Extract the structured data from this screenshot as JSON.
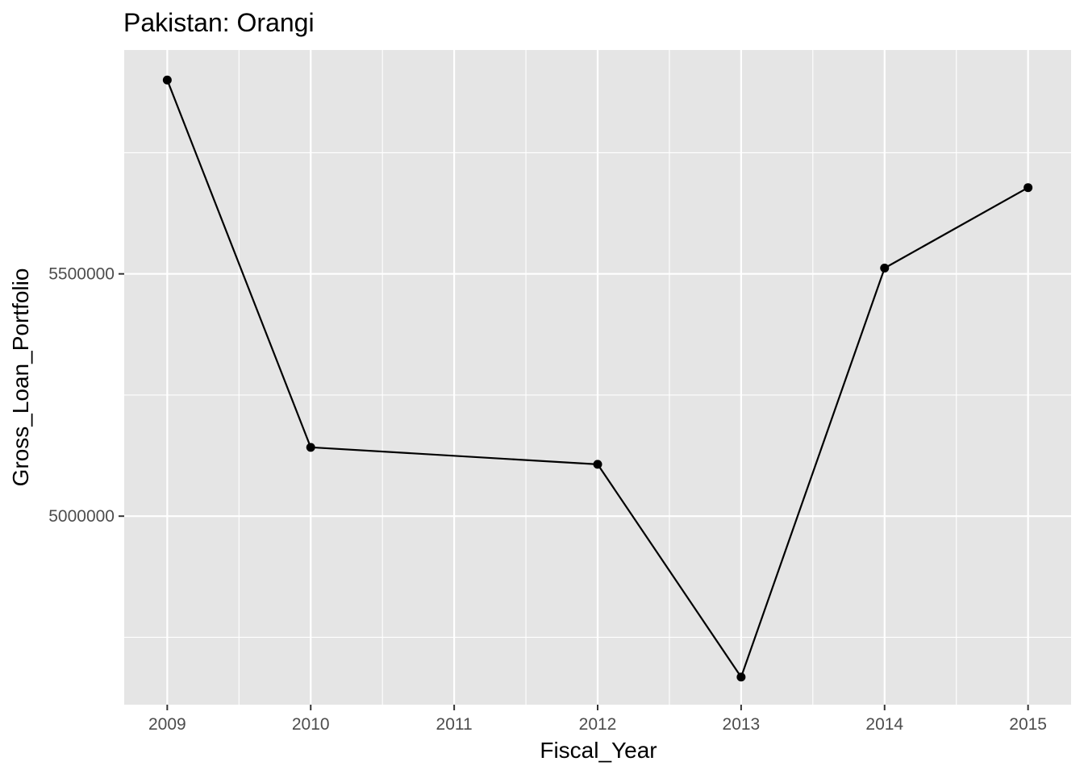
{
  "chart_data": {
    "type": "line",
    "title": "Pakistan:  Orangi",
    "xlabel": "Fiscal_Year",
    "ylabel": "Gross_Loan_Portfolio",
    "x": [
      2009,
      2010,
      2012,
      2013,
      2014,
      2015
    ],
    "series": [
      {
        "values": [
          5900000,
          5142000,
          5107000,
          4668000,
          5512000,
          5678000
        ]
      }
    ],
    "xlim": [
      2008.7,
      2015.3
    ],
    "ylim": [
      4611000,
      5962000
    ],
    "x_ticks": [
      "2009",
      "2010",
      "2011",
      "2012",
      "2013",
      "2014",
      "2015"
    ],
    "y_ticks": [
      "5000000",
      "5500000"
    ],
    "grid": true,
    "legend": "none",
    "colors": {
      "panel_background": "#e5e5e5",
      "grid": "#ffffff",
      "line": "#000000",
      "points": "#000000",
      "tick_labels": "#4d4d4d",
      "tick_marks": "#333333"
    }
  }
}
